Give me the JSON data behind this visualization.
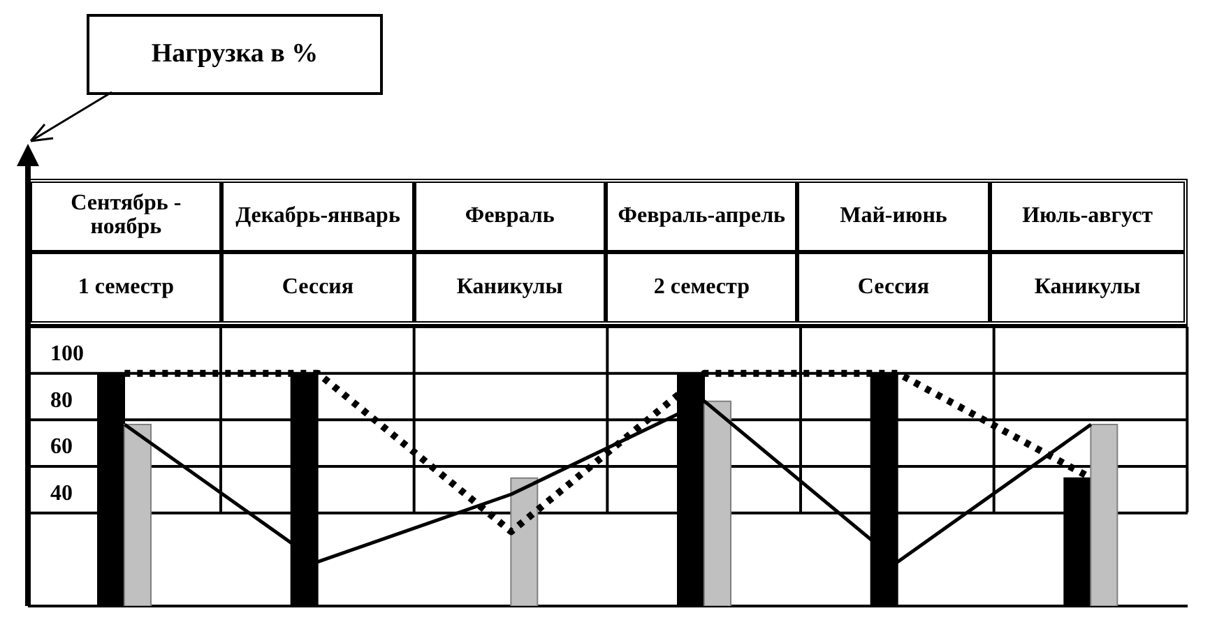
{
  "chart_data": {
    "type": "bar",
    "ylabel": "Нагрузка в %",
    "categories": [
      "Сентябрь - ноябрь",
      "Декабрь-январь",
      "Февраль",
      "Февраль-апрель",
      "Май-июнь",
      "Июль-август"
    ],
    "annotations": [
      "1 семестр",
      "Сессия",
      "Каникулы",
      "2 семестр",
      "Сессия",
      "Каникулы"
    ],
    "series": [
      {
        "color": "#000000",
        "values": [
          100,
          100,
          null,
          100,
          100,
          55
        ]
      },
      {
        "color": "#c0c0c0",
        "values": [
          78,
          null,
          55,
          88,
          null,
          78
        ]
      },
      {
        "type": "line",
        "color": "#000000",
        "line_style": "dotted",
        "values": [
          100,
          100,
          32,
          100,
          100,
          55
        ]
      },
      {
        "type": "line",
        "color": "#000000",
        "line_style": "solid",
        "values": [
          78,
          19,
          48,
          88,
          19,
          78
        ]
      }
    ],
    "ylim": [
      0,
      120
    ],
    "yticks": [
      40,
      60,
      80,
      100
    ],
    "grid": "y",
    "marker": "none"
  }
}
